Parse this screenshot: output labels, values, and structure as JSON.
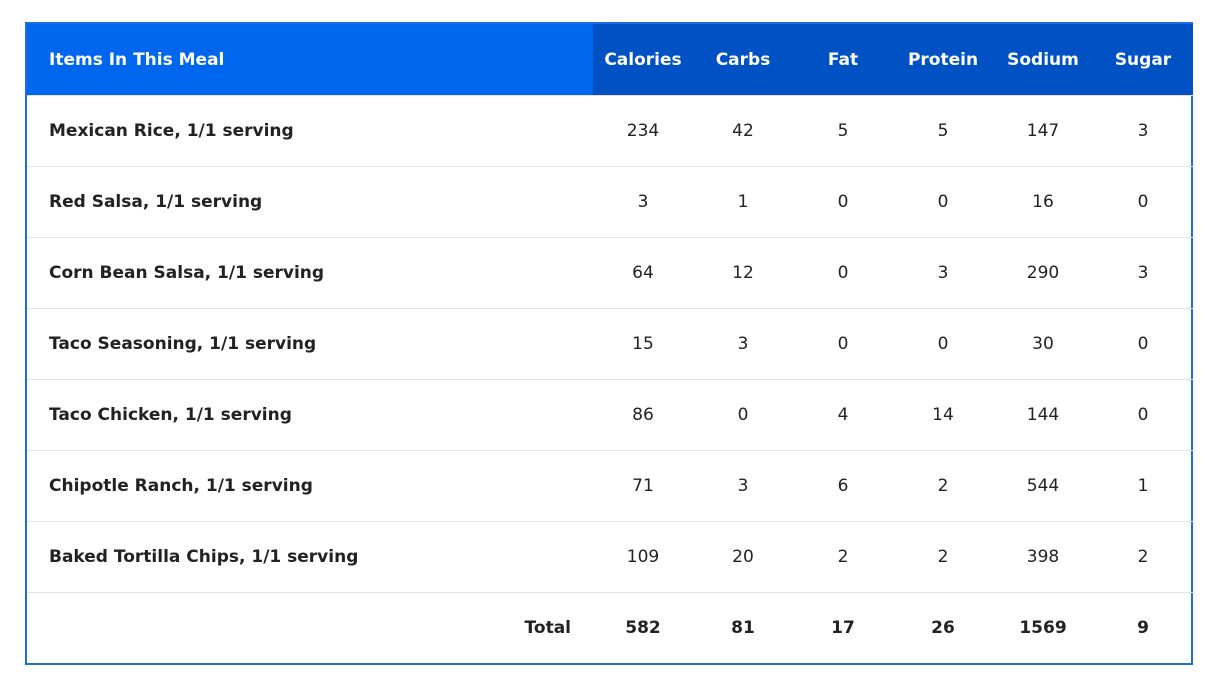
{
  "header": {
    "item_label": "Items In This Meal",
    "columns": [
      "Calories",
      "Carbs",
      "Fat",
      "Protein",
      "Sodium",
      "Sugar"
    ]
  },
  "rows": [
    {
      "item": "Mexican Rice, 1/1 serving",
      "values": [
        234,
        42,
        5,
        5,
        147,
        3
      ]
    },
    {
      "item": "Red Salsa, 1/1 serving",
      "values": [
        3,
        1,
        0,
        0,
        16,
        0
      ]
    },
    {
      "item": "Corn Bean Salsa, 1/1 serving",
      "values": [
        64,
        12,
        0,
        3,
        290,
        3
      ]
    },
    {
      "item": "Taco Seasoning, 1/1 serving",
      "values": [
        15,
        3,
        0,
        0,
        30,
        0
      ]
    },
    {
      "item": "Taco Chicken, 1/1 serving",
      "values": [
        86,
        0,
        4,
        14,
        144,
        0
      ]
    },
    {
      "item": "Chipotle Ranch, 1/1 serving",
      "values": [
        71,
        3,
        6,
        2,
        544,
        1
      ]
    },
    {
      "item": "Baked Tortilla Chips, 1/1 serving",
      "values": [
        109,
        20,
        2,
        2,
        398,
        2
      ]
    }
  ],
  "total": {
    "label": "Total",
    "values": [
      582,
      81,
      17,
      26,
      1569,
      9
    ]
  }
}
